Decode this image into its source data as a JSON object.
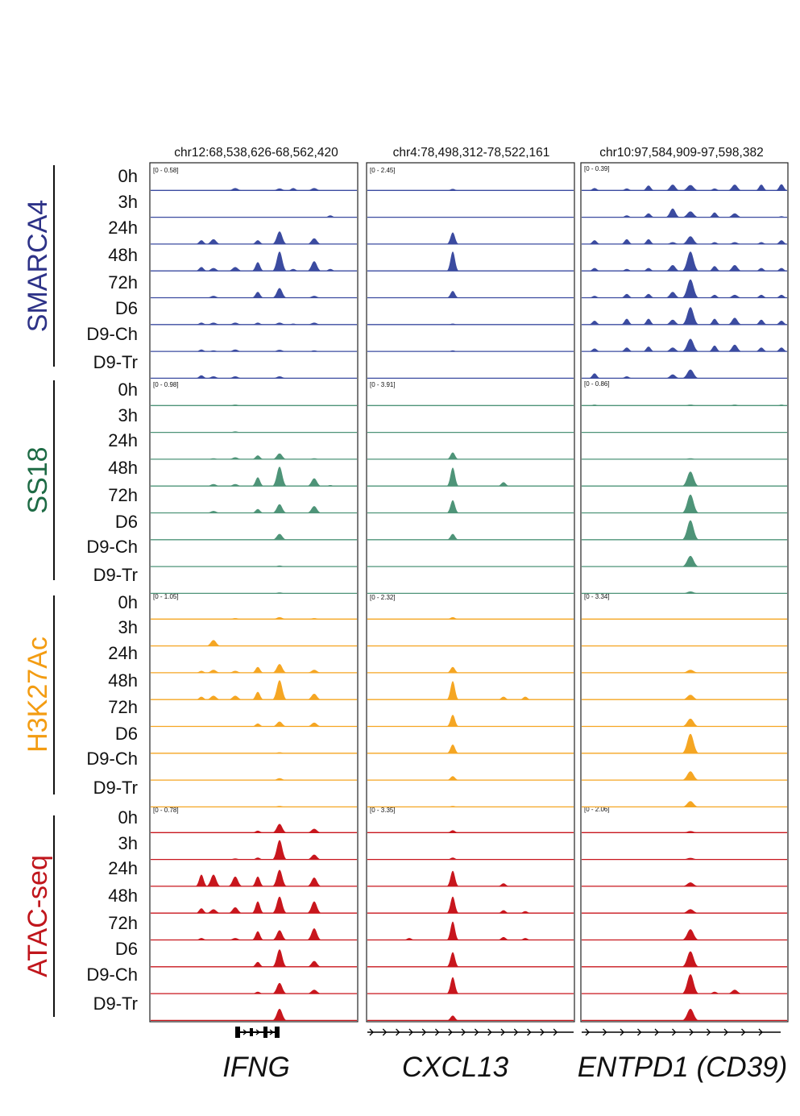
{
  "loci": [
    {
      "coord": "chr12:68,538,626-68,562,420",
      "gene": "IFNG"
    },
    {
      "coord": "chr4:78,498,312-78,522,161",
      "gene": "CXCL13"
    },
    {
      "coord": "chr10:97,584,909-97,598,382",
      "gene": "ENTPD1 (CD39)"
    }
  ],
  "timepoints": [
    "0h",
    "3h",
    "24h",
    "48h",
    "72h",
    "D6",
    "D9-Ch",
    "D9-Tr"
  ],
  "groups": [
    {
      "name": "SMARCA4",
      "color": "#3b4ba0",
      "ranges": [
        "[0 - 0.58]",
        "[0 - 2.45]",
        "[0 - 0.39]"
      ]
    },
    {
      "name": "SS18",
      "color": "#4e9478",
      "ranges": [
        "[0 - 0.98]",
        "[0 - 3.91]",
        "[0 - 0.86]"
      ]
    },
    {
      "name": "H3K27Ac",
      "color": "#f5a623",
      "ranges": [
        "[0 - 1.05]",
        "[0 - 2.32]",
        "[0 - 3.34]"
      ]
    },
    {
      "name": "ATAC-seq",
      "color": "#c8161d",
      "ranges": [
        "[0 - 0.78]",
        "[0 - 3.35]",
        "[0 - 2.06]"
      ]
    }
  ]
}
